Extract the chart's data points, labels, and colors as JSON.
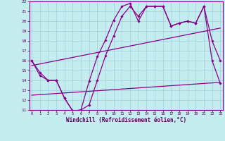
{
  "xlabel": "Windchill (Refroidissement éolien,°C)",
  "xlim": [
    0,
    23
  ],
  "ylim": [
    11,
    22
  ],
  "bg_color": "#c5edf0",
  "grid_color": "#9ecfda",
  "line_color": "#880088",
  "spine_color": "#880088",
  "tick_color": "#660066",
  "xlabel_color": "#550055",
  "line1_x": [
    0,
    1,
    2,
    3,
    4,
    5,
    6,
    7,
    8,
    9,
    10,
    11,
    12,
    13,
    14,
    15,
    16,
    17,
    18,
    19,
    20,
    21,
    22,
    23
  ],
  "line1_y": [
    16.0,
    14.8,
    14.0,
    14.0,
    12.2,
    10.9,
    11.0,
    13.9,
    16.4,
    18.1,
    20.1,
    21.5,
    21.8,
    20.0,
    21.5,
    21.5,
    21.5,
    19.5,
    19.8,
    20.0,
    19.8,
    21.5,
    16.0,
    13.7
  ],
  "line2_x": [
    0,
    1,
    2,
    3,
    4,
    5,
    6,
    7,
    8,
    9,
    10,
    11,
    12,
    13,
    14,
    15,
    16,
    17,
    18,
    19,
    20,
    21,
    22,
    23
  ],
  "line2_y": [
    16.0,
    14.5,
    14.0,
    14.0,
    12.2,
    10.9,
    11.0,
    11.5,
    14.0,
    16.5,
    18.5,
    20.5,
    21.5,
    20.5,
    21.5,
    21.5,
    21.5,
    19.5,
    19.8,
    20.0,
    19.8,
    21.5,
    18.0,
    16.0
  ],
  "line3_x": [
    0,
    23
  ],
  "line3_y": [
    15.5,
    19.3
  ],
  "line4_x": [
    0,
    23
  ],
  "line4_y": [
    12.5,
    13.8
  ],
  "xtick_fontsize": 4.0,
  "ytick_fontsize": 4.5,
  "xlabel_fontsize": 5.5,
  "linewidth": 0.9,
  "markersize": 1.8
}
